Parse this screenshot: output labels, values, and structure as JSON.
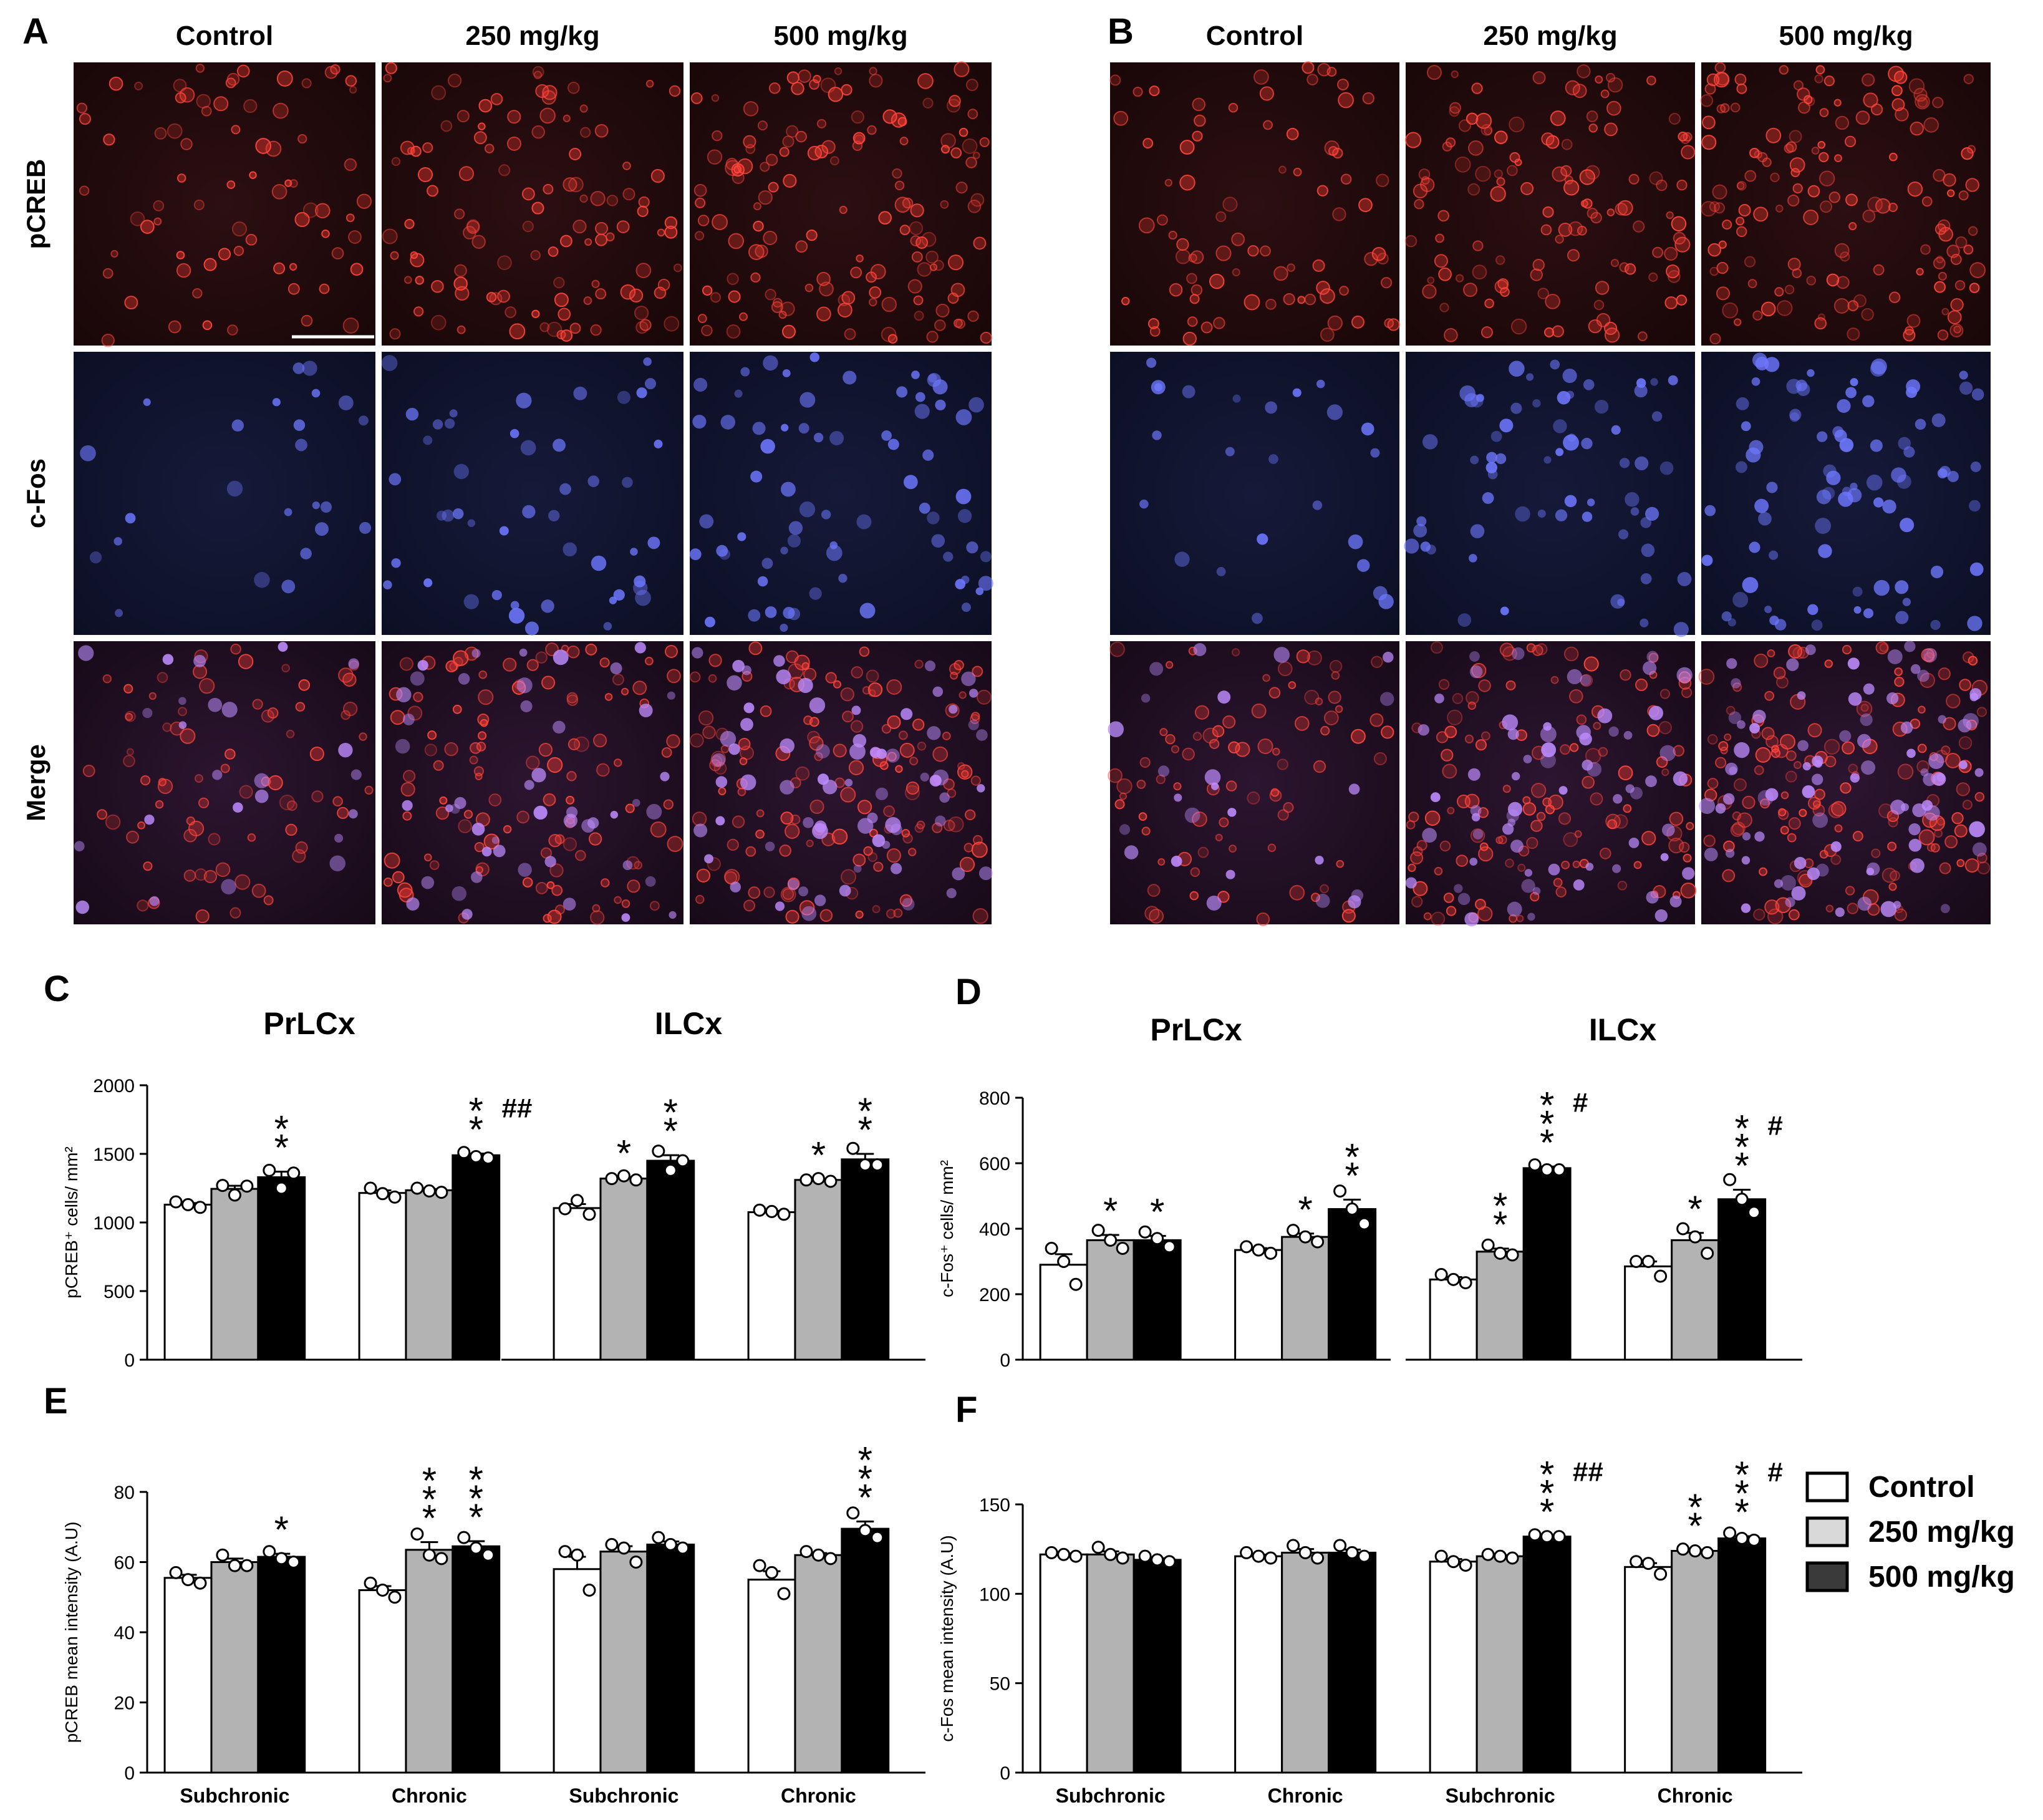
{
  "micrographs": {
    "A": {
      "letter": "A",
      "columns": [
        "Control",
        "250 mg/kg",
        "500 mg/kg"
      ],
      "rows": [
        "pCREB",
        "c-Fos",
        "Merge"
      ],
      "cell_density": [
        [
          0.25,
          0.55,
          0.8
        ],
        [
          0.1,
          0.35,
          0.6
        ]
      ]
    },
    "B": {
      "letter": "B",
      "columns": [
        "Control",
        "250 mg/kg",
        "500 mg/kg"
      ],
      "cell_density": [
        [
          0.3,
          0.65,
          0.85
        ],
        [
          0.1,
          0.55,
          0.75
        ]
      ]
    }
  },
  "legend": {
    "items": [
      {
        "label": "Control",
        "color": "#ffffff"
      },
      {
        "label": "250 mg/kg",
        "color": "#d9d9d9"
      },
      {
        "label": "500 mg/kg",
        "color": "#3a3a3a"
      }
    ]
  },
  "colors": {
    "control": "#ffffff",
    "mid": "#b3b3b3",
    "high": "#000000",
    "red_stain": "#ff3c32",
    "blue_stain": "#6e78ff"
  },
  "chart_data": [
    {
      "panel": "C",
      "type": "bar",
      "ylabel": "pCREB⁺ cells/ mm²",
      "ylim": [
        0,
        2000
      ],
      "yticks": [
        0,
        500,
        1000,
        1500,
        2000
      ],
      "regions": [
        "PrLCx",
        "ILCx"
      ],
      "categories": [
        "",
        "",
        "",
        ""
      ],
      "series": [
        {
          "values": [
            1130,
            1215,
            1105,
            1075
          ]
        },
        {
          "values": [
            1245,
            1235,
            1320,
            1310
          ]
        },
        {
          "values": [
            1330,
            1490,
            1450,
            1460
          ]
        }
      ],
      "points": [
        [
          [
            1150,
            1130,
            1110
          ],
          [
            1250,
            1210,
            1185
          ],
          [
            1100,
            1160,
            1060
          ],
          [
            1090,
            1080,
            1060
          ]
        ],
        [
          [
            1270,
            1200,
            1265
          ],
          [
            1250,
            1230,
            1220
          ],
          [
            1320,
            1340,
            1310
          ],
          [
            1310,
            1320,
            1300
          ]
        ],
        [
          [
            1380,
            1250,
            1360
          ],
          [
            1510,
            1480,
            1470
          ],
          [
            1520,
            1380,
            1450
          ],
          [
            1540,
            1420,
            1420
          ]
        ]
      ],
      "annotations": [
        [
          "",
          "",
          "",
          ""
        ],
        [
          "",
          "",
          "*",
          "*"
        ],
        [
          "**",
          "**##",
          "**",
          "**"
        ]
      ]
    },
    {
      "panel": "D",
      "type": "bar",
      "ylabel": "c-Fos⁺ cells/ mm²",
      "ylim": [
        0,
        800
      ],
      "yticks": [
        0,
        200,
        400,
        600,
        800
      ],
      "regions": [
        "PrLCx",
        "ILCx"
      ],
      "categories": [
        "",
        "",
        "",
        ""
      ],
      "series": [
        {
          "values": [
            290,
            335,
            245,
            285
          ]
        },
        {
          "values": [
            365,
            375,
            330,
            365
          ]
        },
        {
          "values": [
            365,
            460,
            585,
            490
          ]
        }
      ],
      "points": [
        [
          [
            340,
            300,
            230
          ],
          [
            345,
            335,
            325
          ],
          [
            260,
            245,
            235
          ],
          [
            300,
            300,
            255
          ]
        ],
        [
          [
            395,
            365,
            340
          ],
          [
            395,
            375,
            360
          ],
          [
            350,
            325,
            320
          ],
          [
            400,
            375,
            325
          ]
        ],
        [
          [
            390,
            370,
            345
          ],
          [
            515,
            460,
            415
          ],
          [
            595,
            580,
            580
          ],
          [
            550,
            490,
            450
          ]
        ]
      ],
      "annotations": [
        [
          "",
          "",
          "",
          ""
        ],
        [
          "*",
          "*",
          "**",
          "*"
        ],
        [
          "*",
          "**",
          "***#",
          "***#"
        ]
      ]
    },
    {
      "panel": "E",
      "type": "bar",
      "ylabel": "pCREB mean intensity (A.U)",
      "ylim": [
        0,
        80
      ],
      "yticks": [
        0,
        20,
        40,
        60,
        80
      ],
      "categories": [
        "Subchronic",
        "Chronic",
        "Subchronic",
        "Chronic"
      ],
      "series": [
        {
          "values": [
            55.5,
            52,
            58,
            55
          ]
        },
        {
          "values": [
            60,
            63.5,
            63,
            62
          ]
        },
        {
          "values": [
            61.5,
            64.5,
            65,
            69.5
          ]
        }
      ],
      "points": [
        [
          [
            57,
            55,
            54
          ],
          [
            54,
            52,
            50
          ],
          [
            63,
            62,
            52
          ],
          [
            59,
            57,
            51
          ]
        ],
        [
          [
            62,
            59,
            59
          ],
          [
            68,
            62,
            61
          ],
          [
            65,
            64,
            60
          ],
          [
            63,
            62,
            61
          ]
        ],
        [
          [
            63,
            61,
            60
          ],
          [
            67,
            64,
            62
          ],
          [
            67,
            65,
            64
          ],
          [
            74,
            69,
            67
          ]
        ]
      ],
      "annotations": [
        [
          "",
          "",
          "",
          ""
        ],
        [
          "",
          "***",
          "",
          ""
        ],
        [
          "*",
          "***",
          "",
          "***"
        ]
      ]
    },
    {
      "panel": "F",
      "type": "bar",
      "ylabel": "c-Fos mean intensity (A.U)",
      "ylim": [
        0,
        150
      ],
      "yticks": [
        0,
        50,
        100,
        150
      ],
      "categories": [
        "Subchronic",
        "Chronic",
        "Subchronic",
        "Chronic"
      ],
      "series": [
        {
          "values": [
            122,
            121,
            118,
            115
          ]
        },
        {
          "values": [
            122,
            123,
            121,
            124
          ]
        },
        {
          "values": [
            119,
            123,
            132,
            131
          ]
        }
      ],
      "points": [
        [
          [
            123,
            122,
            121
          ],
          [
            123,
            121,
            120
          ],
          [
            121,
            118,
            116
          ],
          [
            118,
            117,
            111
          ]
        ],
        [
          [
            126,
            122,
            120
          ],
          [
            127,
            123,
            120
          ],
          [
            122,
            121,
            120
          ],
          [
            125,
            124,
            123
          ]
        ],
        [
          [
            121,
            119,
            118
          ],
          [
            127,
            123,
            121
          ],
          [
            133,
            132,
            132
          ],
          [
            134,
            131,
            130
          ]
        ]
      ],
      "annotations": [
        [
          "",
          "",
          "",
          ""
        ],
        [
          "",
          "",
          "",
          "**"
        ],
        [
          "",
          "",
          "***##",
          "***#"
        ]
      ]
    }
  ]
}
